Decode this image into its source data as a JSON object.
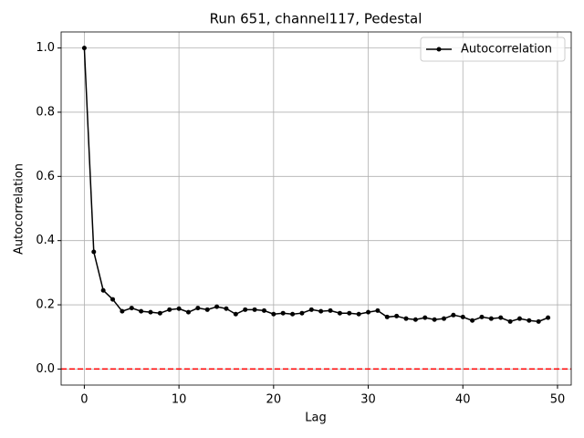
{
  "chart_data": {
    "type": "line",
    "title": "Run 651, channel117, Pedestal",
    "x_label": "Lag",
    "y_label": "Autocorrelation",
    "x": [
      0,
      1,
      2,
      3,
      4,
      5,
      6,
      7,
      8,
      9,
      10,
      11,
      12,
      13,
      14,
      15,
      16,
      17,
      18,
      19,
      20,
      21,
      22,
      23,
      24,
      25,
      26,
      27,
      28,
      29,
      30,
      31,
      32,
      33,
      34,
      35,
      36,
      37,
      38,
      39,
      40,
      41,
      42,
      43,
      44,
      45,
      46,
      47,
      48,
      49
    ],
    "series": [
      {
        "name": "Autocorrelation",
        "color": "#000000",
        "values": [
          1.0,
          0.365,
          0.245,
          0.217,
          0.18,
          0.19,
          0.18,
          0.177,
          0.174,
          0.185,
          0.188,
          0.177,
          0.19,
          0.185,
          0.194,
          0.188,
          0.171,
          0.185,
          0.185,
          0.182,
          0.171,
          0.174,
          0.171,
          0.174,
          0.185,
          0.18,
          0.182,
          0.174,
          0.174,
          0.171,
          0.177,
          0.182,
          0.162,
          0.165,
          0.157,
          0.154,
          0.16,
          0.154,
          0.157,
          0.168,
          0.162,
          0.151,
          0.162,
          0.157,
          0.16,
          0.148,
          0.157,
          0.151,
          0.148,
          0.16
        ]
      }
    ],
    "reference_line": {
      "value": 0,
      "color": "#ff0000"
    },
    "xlim": [
      -2.45,
      51.45
    ],
    "ylim": [
      -0.05,
      1.05
    ],
    "xticks": [
      0,
      10,
      20,
      30,
      40,
      50
    ],
    "yticks": [
      {
        "value": 0,
        "label": "0.0"
      },
      {
        "value": 0.2,
        "label": "0.2"
      },
      {
        "value": 0.4,
        "label": "0.4"
      },
      {
        "value": 0.6,
        "label": "0.6"
      },
      {
        "value": 0.8,
        "label": "0.8"
      },
      {
        "value": 1.0,
        "label": "1.0"
      }
    ],
    "grid": true,
    "legend": "upper right"
  }
}
